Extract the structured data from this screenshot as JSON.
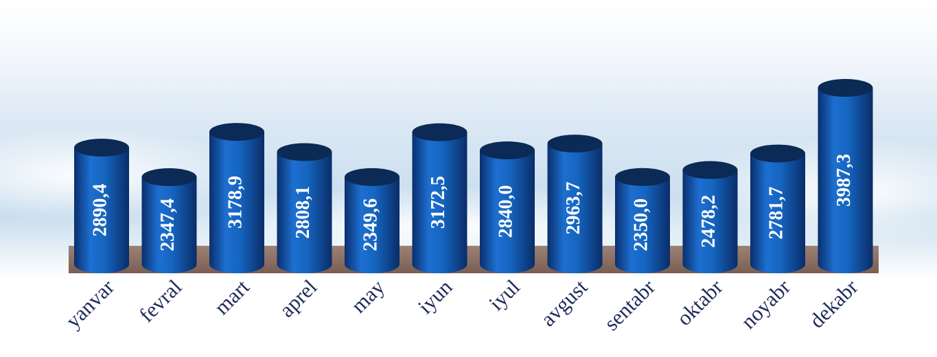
{
  "chart_data": {
    "type": "bar",
    "style": "cylinder",
    "color": "#1565c0",
    "categories": [
      "yanvar",
      "fevral",
      "mart",
      "aprel",
      "may",
      "iyun",
      "iyul",
      "avgust",
      "sentabr",
      "oktabr",
      "noyabr",
      "dekabr"
    ],
    "values": [
      2890.4,
      2347.4,
      3178.9,
      2808.1,
      2349.6,
      3172.5,
      2840.0,
      2963.7,
      2350.0,
      2478.2,
      2781.7,
      3987.3
    ],
    "value_labels": [
      "2890,4",
      "2347,4",
      "3178,9",
      "2808,1",
      "2349,6",
      "3172,5",
      "2840,0",
      "2963,7",
      "2350,0",
      "2478,2",
      "2781,7",
      "3987,3"
    ]
  }
}
